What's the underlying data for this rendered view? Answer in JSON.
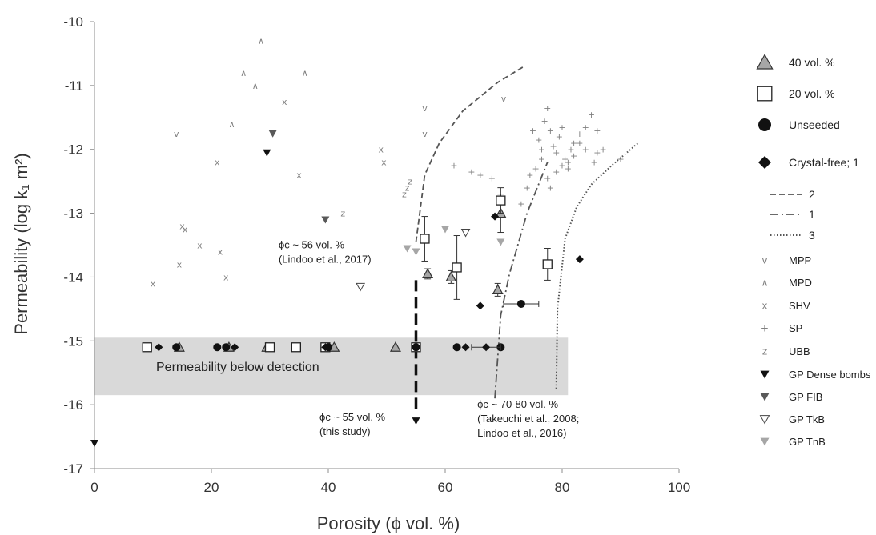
{
  "chart_data": {
    "type": "scatter",
    "title": "",
    "xlabel": "Porosity (ϕ vol. %)",
    "ylabel": "Permeability (log k₁ m²)",
    "xlim": [
      0,
      100
    ],
    "ylim": [
      -17,
      -10
    ],
    "xticks": [
      "0",
      "20",
      "40",
      "60",
      "80",
      "100"
    ],
    "yticks": [
      "-10",
      "-11",
      "-12",
      "-13",
      "-14",
      "-15",
      "-16",
      "-17"
    ],
    "grid": false,
    "legend_position": "right",
    "band": {
      "label": "Permeability below detection",
      "x": [
        0,
        81
      ],
      "y": [
        -15.85,
        -14.95
      ]
    },
    "annotations": [
      {
        "text": [
          "ϕc ~ 56 vol. %",
          "(Lindoo et al., 2017)"
        ],
        "x": 31.5,
        "y": -13.55
      },
      {
        "text": [
          "ϕc ~ 55 vol. %",
          "(this study)"
        ],
        "x": 38.5,
        "y": -16.25
      },
      {
        "text": [
          "ϕc ~ 70-80 vol. %",
          "(Takeuchi et al., 2008;",
          "Lindoo et al., 2016)"
        ],
        "x": 65.5,
        "y": -16.05
      }
    ],
    "threshold_line": {
      "x": 55,
      "y": [
        -14.05,
        -16.15
      ]
    },
    "series": [
      {
        "name": "40 vol. %",
        "marker": "triangle-gray",
        "x": [
          14.5,
          23,
          29.5,
          41,
          51.5,
          57,
          61,
          69,
          69.5
        ],
        "y": [
          -15.1,
          -15.1,
          -15.1,
          -15.1,
          -15.1,
          -13.95,
          -14.0,
          -14.2,
          -13.0
        ],
        "yerr": [
          0,
          0,
          0,
          0,
          0,
          0.08,
          0.1,
          0.1,
          0.3
        ]
      },
      {
        "name": "20 vol. %",
        "marker": "square-open",
        "x": [
          9,
          30,
          34.5,
          39.5,
          55,
          56.5,
          62,
          69.5,
          77.5
        ],
        "y": [
          -15.1,
          -15.1,
          -15.1,
          -15.1,
          -15.1,
          -13.4,
          -13.85,
          -12.8,
          -13.8
        ],
        "yerr": [
          0,
          0,
          0,
          0,
          0,
          0.35,
          0.5,
          0.2,
          0.25
        ]
      },
      {
        "name": "Unseeded",
        "marker": "circle",
        "x": [
          14,
          21,
          40,
          55,
          62,
          69.5,
          73,
          22.5
        ],
        "y": [
          -15.1,
          -15.1,
          -15.1,
          -15.1,
          -15.1,
          -15.1,
          -14.42,
          -15.1
        ],
        "xerr": [
          0,
          0,
          0,
          0,
          0,
          0,
          3,
          0
        ]
      },
      {
        "name": "Crystal-free; 1",
        "marker": "diamond",
        "x": [
          11,
          24,
          39.5,
          63.5,
          67,
          66,
          83,
          68.5
        ],
        "y": [
          -15.1,
          -15.1,
          -15.1,
          -15.1,
          -15.1,
          -14.45,
          -13.72,
          -13.05
        ],
        "xerr": [
          0,
          0,
          0,
          0,
          2.5,
          0,
          0,
          0
        ]
      },
      {
        "name": "MPP",
        "marker": "v",
        "x": [
          14,
          56.5,
          56.5,
          70
        ],
        "y": [
          -11.75,
          -11.35,
          -11.75,
          -11.2
        ]
      },
      {
        "name": "MPD",
        "marker": "^",
        "x": [
          23.5,
          25.5,
          27.5,
          28.5,
          36
        ],
        "y": [
          -11.6,
          -10.8,
          -11.0,
          -10.3,
          -10.8
        ]
      },
      {
        "name": "SHV",
        "marker": "x",
        "x": [
          10,
          14.5,
          15,
          15.5,
          18,
          21,
          21.5,
          22.5,
          32.5,
          35,
          49,
          49.5
        ],
        "y": [
          -14.1,
          -13.8,
          -13.2,
          -13.25,
          -13.5,
          -12.2,
          -13.6,
          -14.0,
          -11.25,
          -12.4,
          -12.0,
          -12.2
        ]
      },
      {
        "name": "SP",
        "marker": "+",
        "x": [
          61.5,
          64.5,
          66,
          68,
          75,
          76,
          76.5,
          77,
          77.5,
          78,
          78.5,
          79,
          79.5,
          80,
          80.5,
          81,
          81.5,
          82,
          83,
          84,
          85,
          86,
          87,
          90,
          73,
          74,
          74.5,
          75.5,
          76.5,
          77.5,
          78,
          79,
          80,
          81,
          82,
          83,
          84,
          85.5,
          86
        ],
        "y": [
          -12.25,
          -12.35,
          -12.4,
          -12.45,
          -11.7,
          -11.85,
          -12.0,
          -11.55,
          -11.35,
          -11.7,
          -11.95,
          -12.05,
          -11.8,
          -11.65,
          -12.15,
          -12.3,
          -12.0,
          -11.9,
          -11.75,
          -12.0,
          -11.45,
          -12.05,
          -12.0,
          -12.15,
          -12.85,
          -12.6,
          -12.4,
          -12.3,
          -12.15,
          -12.45,
          -12.6,
          -12.35,
          -12.25,
          -12.2,
          -12.1,
          -11.9,
          -11.65,
          -12.2,
          -11.7
        ]
      },
      {
        "name": "UBB",
        "marker": "z",
        "x": [
          42.5,
          53,
          53.5,
          54
        ],
        "y": [
          -13.0,
          -12.7,
          -12.6,
          -12.5
        ]
      },
      {
        "name": "GP Dense bombs",
        "marker": "tri-down-black",
        "x": [
          0,
          29.5,
          55
        ],
        "y": [
          -16.6,
          -12.05,
          -16.25
        ]
      },
      {
        "name": "GP FIB",
        "marker": "tri-down-dark",
        "x": [
          30.5,
          39.5
        ],
        "y": [
          -11.75,
          -13.1
        ]
      },
      {
        "name": "GP TkB",
        "marker": "tri-down-open",
        "x": [
          45.5,
          63.5
        ],
        "y": [
          -14.15,
          -13.3
        ]
      },
      {
        "name": "GP TnB",
        "marker": "tri-down-gray",
        "x": [
          53.5,
          55,
          60,
          69.5
        ],
        "y": [
          -13.55,
          -13.6,
          -13.25,
          -13.45
        ]
      }
    ],
    "lines": [
      {
        "name": "2",
        "style": "dashed",
        "x": [
          55,
          56.5,
          59,
          63,
          69,
          73.5
        ],
        "y": [
          -13.45,
          -12.4,
          -11.9,
          -11.4,
          -10.95,
          -10.7
        ]
      },
      {
        "name": "1",
        "style": "dashdot",
        "x": [
          68.5,
          69.5,
          71,
          74,
          77.5
        ],
        "y": [
          -15.9,
          -14.6,
          -13.95,
          -13.0,
          -12.2
        ]
      },
      {
        "name": "3",
        "style": "dotted",
        "x": [
          79,
          79.2,
          80.5,
          82.5,
          85,
          88.5,
          93
        ],
        "y": [
          -15.75,
          -14.5,
          -13.4,
          -12.9,
          -12.55,
          -12.25,
          -11.9
        ]
      }
    ]
  },
  "legend": [
    {
      "label": "40 vol. %",
      "marker": "triangle-gray"
    },
    {
      "label": "20 vol. %",
      "marker": "square-open"
    },
    {
      "label": "Unseeded",
      "marker": "circle"
    },
    {
      "label": "Crystal-free; 1",
      "marker": "diamond"
    },
    {
      "label": "2",
      "marker": "line-dashed"
    },
    {
      "label": "1",
      "marker": "line-dashdot"
    },
    {
      "label": "3",
      "marker": "line-dotted"
    },
    {
      "label": "MPP",
      "marker": "v"
    },
    {
      "label": "MPD",
      "marker": "^"
    },
    {
      "label": "SHV",
      "marker": "x"
    },
    {
      "label": "SP",
      "marker": "+"
    },
    {
      "label": "UBB",
      "marker": "z"
    },
    {
      "label": "GP Dense bombs",
      "marker": "tri-down-black"
    },
    {
      "label": "GP FIB",
      "marker": "tri-down-dark"
    },
    {
      "label": "GP TkB",
      "marker": "tri-down-open"
    },
    {
      "label": "GP TnB",
      "marker": "tri-down-gray"
    }
  ],
  "colors": {
    "band": "#d9d9d9",
    "axis": "#8c8c8c",
    "gray_triangle": "#a6a6a6",
    "tri_gray": "#a6a6a6",
    "tri_dark": "#595959",
    "symbol_text": "#808080"
  }
}
